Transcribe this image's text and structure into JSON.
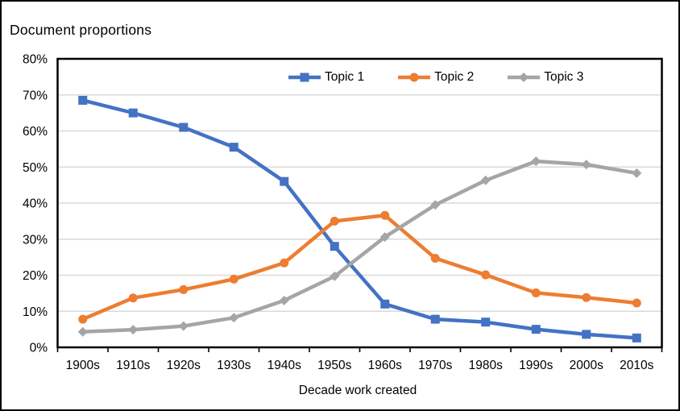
{
  "title": "Document proportions",
  "chart_data": {
    "type": "line",
    "title": "Document proportions",
    "xlabel": "Decade work created",
    "ylabel": "",
    "categories": [
      "1900s",
      "1910s",
      "1920s",
      "1930s",
      "1940s",
      "1950s",
      "1960s",
      "1970s",
      "1980s",
      "1990s",
      "2000s",
      "2010s"
    ],
    "series": [
      {
        "name": "Topic 1",
        "color": "#4472C4",
        "marker": "square",
        "values": [
          68.5,
          65.0,
          61.0,
          55.5,
          46.0,
          28.0,
          12.0,
          7.8,
          7.0,
          5.0,
          3.6,
          2.6
        ]
      },
      {
        "name": "Topic 2",
        "color": "#ED7D31",
        "marker": "circle",
        "values": [
          7.8,
          13.7,
          16.0,
          18.9,
          23.4,
          35.0,
          36.6,
          24.7,
          20.1,
          15.1,
          13.8,
          12.3
        ]
      },
      {
        "name": "Topic 3",
        "color": "#A5A5A5",
        "marker": "diamond",
        "values": [
          4.3,
          4.9,
          5.9,
          8.2,
          13.0,
          19.7,
          30.6,
          39.5,
          46.3,
          51.6,
          50.7,
          48.3
        ]
      }
    ],
    "ylim": [
      0,
      80
    ],
    "ytick_step": 10,
    "ytick_labels": [
      "0%",
      "10%",
      "20%",
      "30%",
      "40%",
      "50%",
      "60%",
      "70%",
      "80%"
    ],
    "grid": true,
    "legend_position": "top",
    "style": {
      "grid_color": "#D9D9D9",
      "axis_color": "#000000",
      "text_color": "#000000",
      "background": "#FFFFFF"
    }
  }
}
